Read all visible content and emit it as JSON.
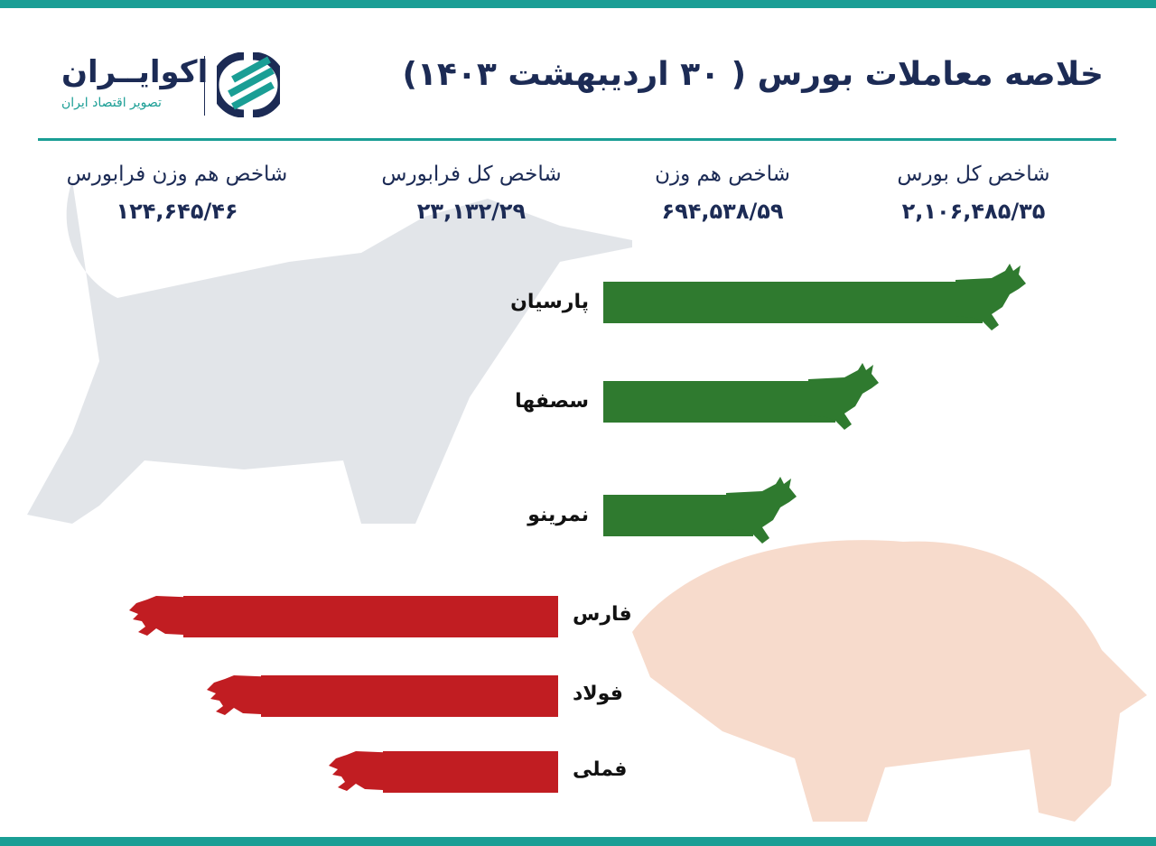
{
  "title": "خلاصه معاملات بورس  ( ۳۰ اردیبهشت ۱۴۰۳)",
  "logo": {
    "name": "اکوایــران",
    "tagline": "تصویر اقتصاد ایران"
  },
  "indices": [
    {
      "label": "شاخص کل بورس",
      "value": "۲,۱۰۶,۴۸۵/۳۵"
    },
    {
      "label": "شاخص هم وزن",
      "value": "۶۹۴,۵۳۸/۵۹"
    },
    {
      "label": "شاخص کل فرابورس",
      "value": "۲۳,۱۳۲/۲۹"
    },
    {
      "label": "شاخص هم وزن فرابورس",
      "value": "۱۲۴,۶۴۵/۴۶"
    }
  ],
  "colors": {
    "accent": "#1a9e95",
    "navy": "#1c2b55",
    "positive": "#2f7a2f",
    "negative": "#c11d22"
  },
  "chart_data": {
    "type": "bar",
    "orientation": "horizontal",
    "note_scale": "relative bar length, no values printed",
    "series": [
      {
        "direction": "positive",
        "icon": "bull-icon",
        "categories": [
          "پارسیان",
          "سصفها",
          "نمرینو"
        ],
        "values": [
          1.0,
          0.66,
          0.47
        ]
      },
      {
        "direction": "negative",
        "icon": "bear-icon",
        "categories": [
          "فارس",
          "فولاد",
          "فملی"
        ],
        "values": [
          0.99,
          0.81,
          0.53
        ]
      }
    ]
  }
}
